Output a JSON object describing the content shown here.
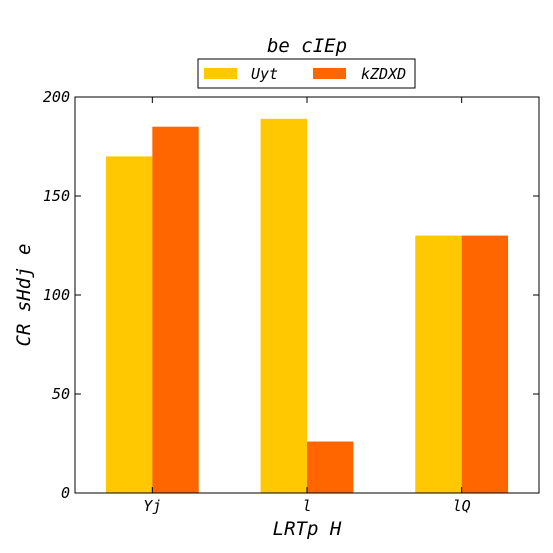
{
  "chart_data": {
    "type": "bar",
    "title": "be cIEp",
    "xlabel": "LRTp H",
    "ylabel": "CR sHdj e",
    "categories": [
      "Yj",
      "l",
      "lQ"
    ],
    "series": [
      {
        "name": "Uyt",
        "color": "#ffc800",
        "values": [
          170,
          189,
          130
        ]
      },
      {
        "name": "kZDXD",
        "color": "#ff6600",
        "values": [
          185,
          26,
          130
        ]
      }
    ],
    "ylim": [
      0,
      200
    ],
    "yticks": [
      0,
      50,
      100,
      150,
      200
    ],
    "grid": false,
    "legend_position": "top-center"
  }
}
